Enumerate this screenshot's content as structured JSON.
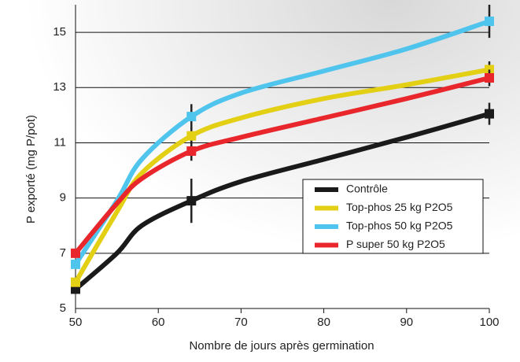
{
  "chart_data": {
    "type": "line",
    "x_label": "Nombre de jours après germination",
    "y_label": "P exporté (mg P/pot)",
    "x": [
      50,
      55,
      58,
      64,
      70,
      80,
      90,
      100
    ],
    "series": [
      {
        "name": "Contrôle",
        "color": "#1a1a1a",
        "values": [
          5.7,
          7.0,
          8.0,
          8.9,
          9.6,
          10.4,
          11.2,
          12.05
        ],
        "errors": [
          0,
          null,
          null,
          0.8,
          null,
          null,
          null,
          0.4
        ]
      },
      {
        "name": "Top-phos 25 kg P2O5",
        "color": "#e3cf14",
        "values": [
          5.95,
          8.5,
          9.9,
          11.25,
          11.9,
          12.6,
          13.1,
          13.65
        ],
        "errors": [
          0,
          null,
          null,
          0.3,
          null,
          null,
          null,
          0.3
        ]
      },
      {
        "name": "Top-phos 50 kg P2O5",
        "color": "#4fc4ec",
        "values": [
          6.6,
          8.9,
          10.4,
          11.95,
          12.8,
          13.6,
          14.4,
          15.4
        ],
        "errors": [
          0,
          null,
          null,
          0.45,
          null,
          null,
          null,
          0.6
        ]
      },
      {
        "name": "P super 50 kg P2O5",
        "color": "#e8262b",
        "values": [
          7.0,
          8.8,
          9.7,
          10.7,
          11.2,
          11.9,
          12.6,
          13.35
        ],
        "errors": [
          0,
          null,
          null,
          0.35,
          null,
          null,
          null,
          0.3
        ]
      }
    ],
    "xlim": [
      50,
      100
    ],
    "xticks": [
      50,
      60,
      70,
      80,
      90,
      100
    ],
    "ylim": [
      5,
      16
    ],
    "yticks": [
      5,
      7,
      9,
      11,
      13,
      15
    ],
    "grid": true,
    "legend": "lower right"
  }
}
